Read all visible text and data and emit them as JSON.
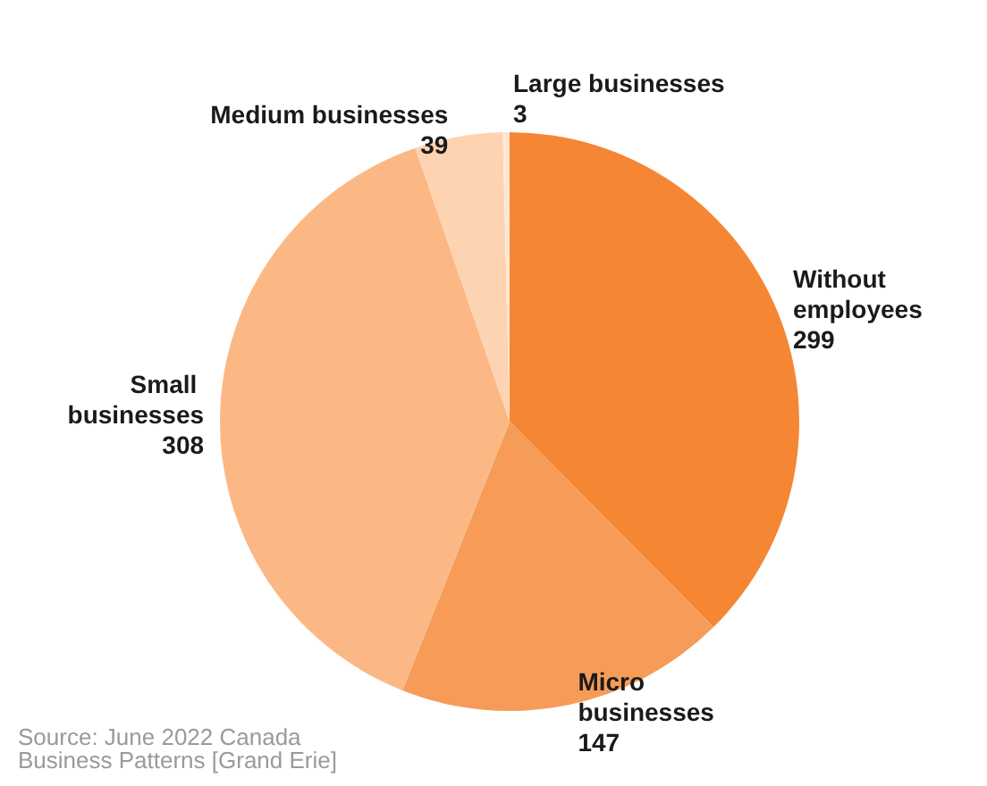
{
  "chart_data": {
    "type": "pie",
    "categories": [
      "Without employees",
      "Micro businesses",
      "Small businesses",
      "Medium businesses",
      "Large businesses"
    ],
    "values": [
      299,
      147,
      308,
      39,
      3
    ],
    "colors": [
      "#f58634",
      "#f69c58",
      "#fbb885",
      "#fdd3b2",
      "#fee6d4"
    ],
    "data_labels": true,
    "annotations": [
      "Source: June 2022 Canada Business Patterns [Grand Erie]"
    ]
  }
}
